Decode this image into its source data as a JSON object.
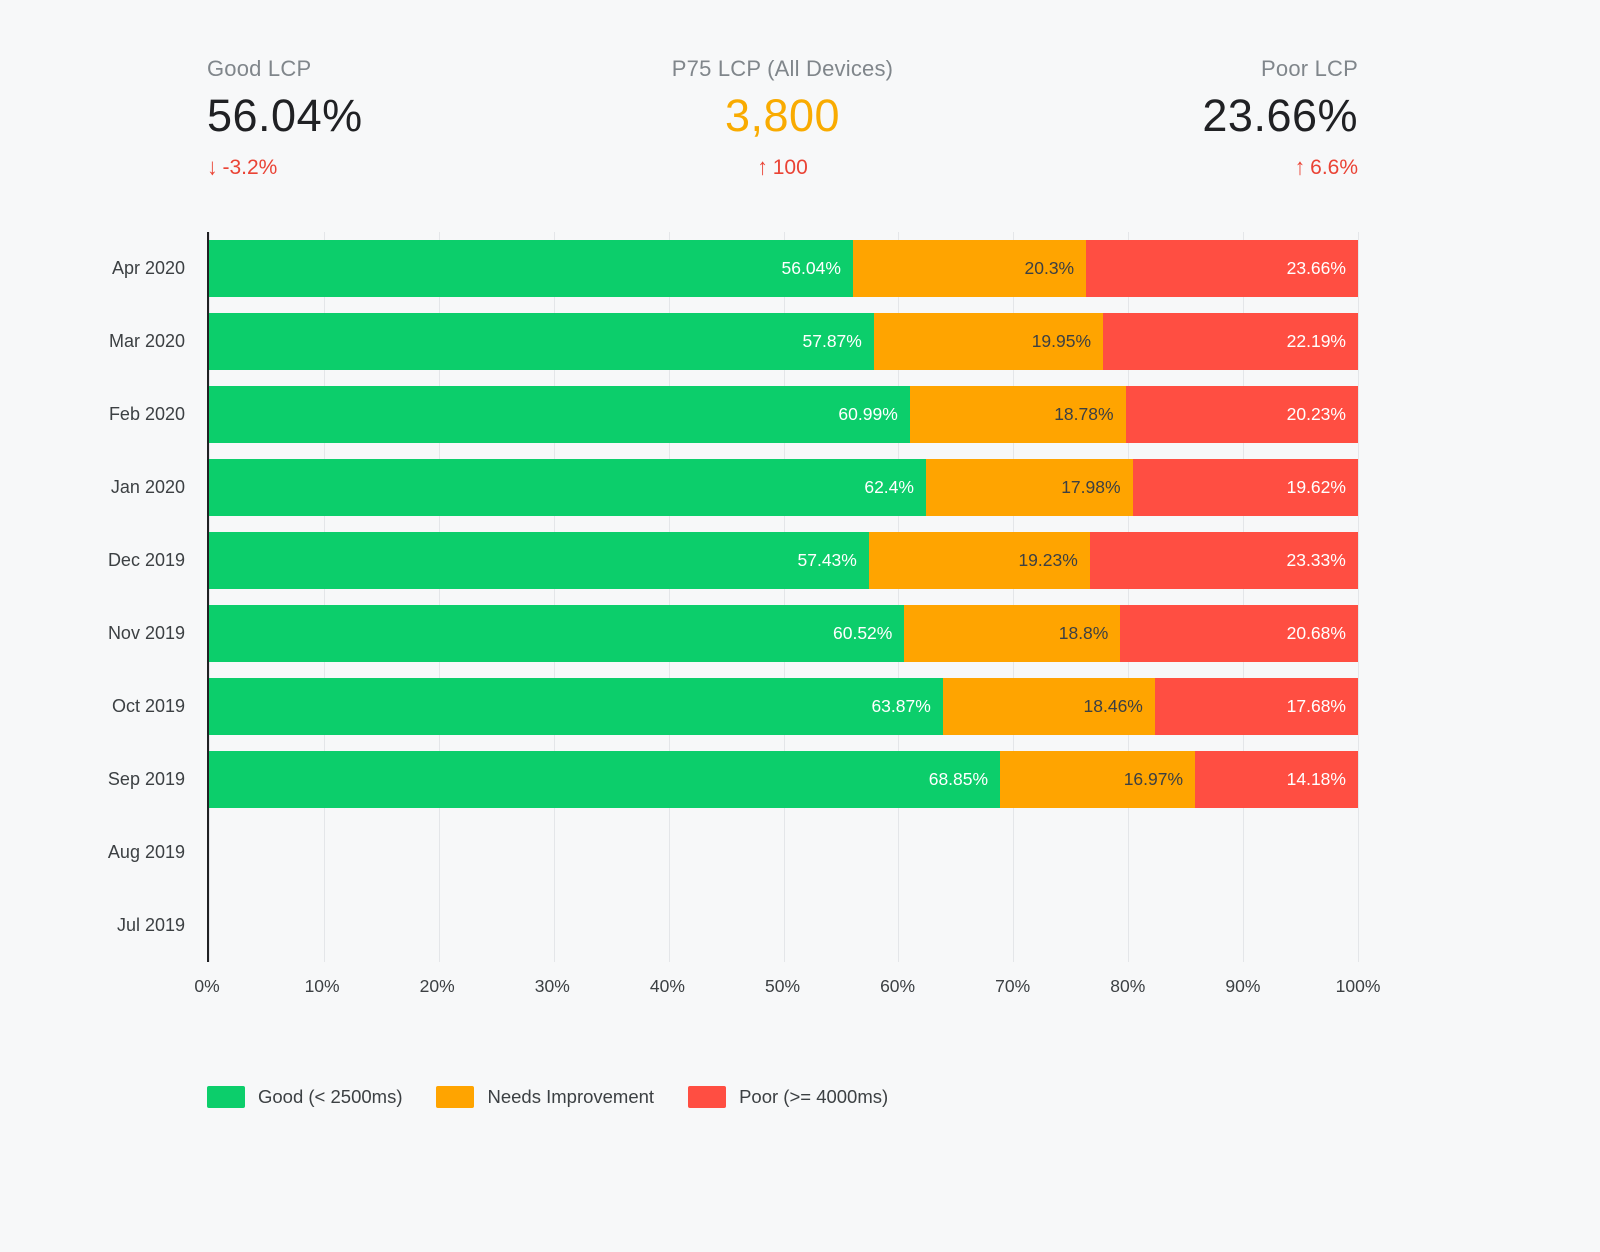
{
  "kpis": [
    {
      "label": "Good LCP",
      "value": "56.04%",
      "value_color": "#202124",
      "delta": "-3.2%",
      "delta_icon": "arrow-down-icon",
      "delta_color": "#ea4335"
    },
    {
      "label": "P75 LCP (All Devices)",
      "value": "3,800",
      "value_color": "#f9ab00",
      "delta": "100",
      "delta_icon": "arrow-up-icon",
      "delta_color": "#ea4335"
    },
    {
      "label": "Poor LCP",
      "value": "23.66%",
      "value_color": "#202124",
      "delta": "6.6%",
      "delta_icon": "arrow-up-icon",
      "delta_color": "#ea4335"
    }
  ],
  "chart_data": {
    "type": "bar",
    "orientation": "horizontal",
    "stacked": true,
    "title": "",
    "categories": [
      "Apr 2020",
      "Mar 2020",
      "Feb 2020",
      "Jan 2020",
      "Dec 2019",
      "Nov 2019",
      "Oct 2019",
      "Sep 2019",
      "Aug 2019",
      "Jul 2019"
    ],
    "series": [
      {
        "name": "Good (< 2500ms)",
        "color": "#0cce6b",
        "label_color": "#ffffff",
        "values": [
          56.04,
          57.87,
          60.99,
          62.4,
          57.43,
          60.52,
          63.87,
          68.85,
          null,
          null
        ]
      },
      {
        "name": "Needs Improvement",
        "color": "#ffa400",
        "label_color": "#3c4043",
        "values": [
          20.3,
          19.95,
          18.78,
          17.98,
          19.23,
          18.8,
          18.46,
          16.97,
          null,
          null
        ]
      },
      {
        "name": "Poor (>= 4000ms)",
        "color": "#ff4e42",
        "label_color": "#ffffff",
        "values": [
          23.66,
          22.19,
          20.23,
          19.62,
          23.33,
          20.68,
          17.68,
          14.18,
          null,
          null
        ]
      }
    ],
    "value_suffix": "%",
    "xlim": [
      0,
      100
    ],
    "x_ticks": [
      "0%",
      "10%",
      "20%",
      "30%",
      "40%",
      "50%",
      "60%",
      "70%",
      "80%",
      "90%",
      "100%"
    ],
    "grid": true,
    "legend_position": "bottom"
  }
}
